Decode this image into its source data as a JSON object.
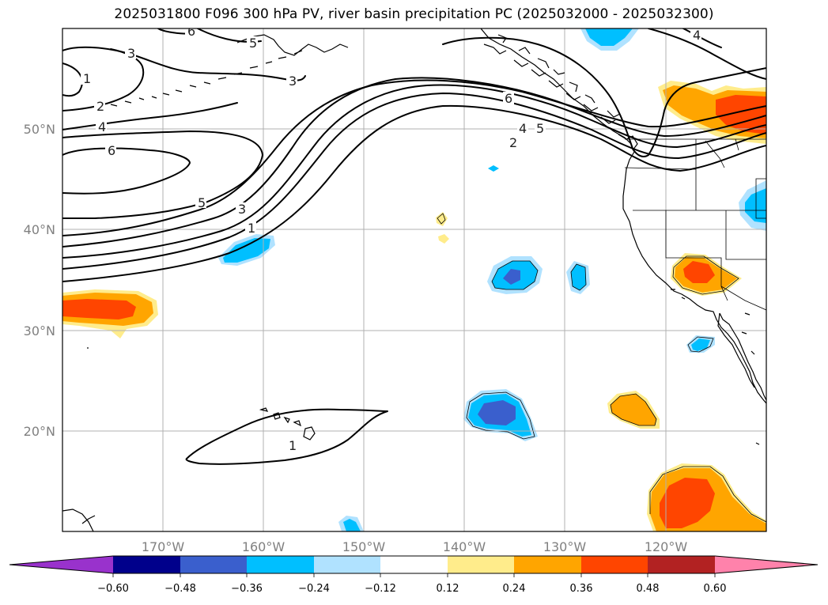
{
  "title": "2025031800 F096 300 hPa PV, river basin precipitation PC (2025032000 - 2025032300)",
  "axes": {
    "lon_labels": [
      "170°W",
      "160°W",
      "150°W",
      "140°W",
      "130°W",
      "120°W"
    ],
    "lat_labels": [
      "50°N",
      "40°N",
      "30°N",
      "20°N"
    ],
    "lon_range": [
      -180,
      -110
    ],
    "lat_range": [
      10,
      60
    ],
    "grid": true
  },
  "colorbar": {
    "ticks": [
      "−0.60",
      "−0.48",
      "−0.36",
      "−0.24",
      "−0.12",
      "0.12",
      "0.24",
      "0.36",
      "0.48",
      "0.60"
    ],
    "levels": [
      -0.6,
      -0.48,
      -0.36,
      -0.24,
      -0.12,
      0.12,
      0.24,
      0.36,
      0.48,
      0.6
    ],
    "colors": {
      "under": "#9932cc",
      "bins": [
        "#00008b",
        "#3a5fcd",
        "#00bfff",
        "#b0e2ff",
        "#ffffff",
        "#ffec8b",
        "#ffa500",
        "#ff4500",
        "#b22222"
      ],
      "over": "#ff82ab"
    },
    "extend": "both"
  },
  "contour_labels": [
    "6",
    "3",
    "5",
    "1",
    "3",
    "2",
    "4",
    "6",
    "5",
    "3",
    "1",
    "6",
    "4",
    "5",
    "2",
    "4",
    "1"
  ],
  "chart_data": {
    "type": "heatmap",
    "title": "2025031800 F096 300 hPa PV, river basin precipitation PC (2025032000 - 2025032300)",
    "xlabel": "",
    "ylabel": "",
    "xlim": [
      -180,
      -110
    ],
    "ylim": [
      10,
      60
    ],
    "x_ticks": [
      "170°W",
      "160°W",
      "150°W",
      "140°W",
      "130°W",
      "120°W"
    ],
    "y_ticks": [
      "50°N",
      "40°N",
      "30°N",
      "20°N"
    ],
    "pv_contour_levels": [
      1,
      2,
      3,
      4,
      5,
      6
    ],
    "colorbar_levels": [
      -0.6,
      -0.48,
      -0.36,
      -0.24,
      -0.12,
      0.12,
      0.24,
      0.36,
      0.48,
      0.6
    ],
    "colorbar_placement": "bottom"
  }
}
